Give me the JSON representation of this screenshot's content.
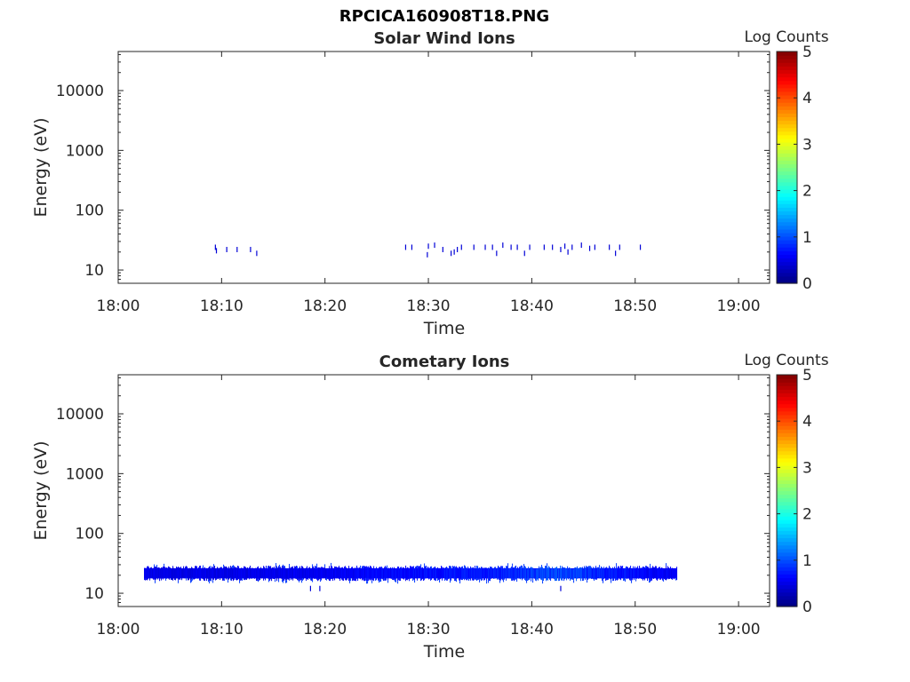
{
  "figure": {
    "title": "RPCICA160908T18.PNG"
  },
  "colors": {
    "axis": "#262626",
    "colormap": "jet"
  },
  "chart_data": [
    {
      "type": "heatmap",
      "title": "Solar Wind Ions",
      "xlabel": "Time",
      "ylabel": "Energy (eV)",
      "xlim": [
        "18:00",
        "19:03"
      ],
      "x_ticks": [
        "18:00",
        "18:10",
        "18:20",
        "18:30",
        "18:40",
        "18:50",
        "19:00"
      ],
      "y_scale": "log",
      "ylim": [
        6,
        45000
      ],
      "y_ticks": [
        "10",
        "100",
        "1000",
        "10000"
      ],
      "colorbar": {
        "label": "Log Counts",
        "range": [
          0,
          5
        ],
        "ticks": [
          "0",
          "1",
          "2",
          "3",
          "4",
          "5"
        ]
      },
      "events": [
        {
          "t": "18:09.4",
          "e": 24,
          "log_counts": 0.3
        },
        {
          "t": "18:09.5",
          "e": 21,
          "log_counts": 0.3
        },
        {
          "t": "18:10.5",
          "e": 22,
          "log_counts": 0.3
        },
        {
          "t": "18:11.5",
          "e": 22,
          "log_counts": 0.3
        },
        {
          "t": "18:12.8",
          "e": 22,
          "log_counts": 0.3
        },
        {
          "t": "18:13.4",
          "e": 19,
          "log_counts": 0.3
        },
        {
          "t": "18:27.8",
          "e": 24,
          "log_counts": 0.3
        },
        {
          "t": "18:28.4",
          "e": 24,
          "log_counts": 0.3
        },
        {
          "t": "18:29.9",
          "e": 18,
          "log_counts": 0.3
        },
        {
          "t": "18:30.0",
          "e": 25,
          "log_counts": 0.3
        },
        {
          "t": "18:30.6",
          "e": 26,
          "log_counts": 0.3
        },
        {
          "t": "18:31.4",
          "e": 22,
          "log_counts": 0.3
        },
        {
          "t": "18:32.2",
          "e": 19,
          "log_counts": 0.3
        },
        {
          "t": "18:32.5",
          "e": 20,
          "log_counts": 0.3
        },
        {
          "t": "18:32.8",
          "e": 22,
          "log_counts": 0.3
        },
        {
          "t": "18:33.2",
          "e": 24,
          "log_counts": 0.3
        },
        {
          "t": "18:34.4",
          "e": 24,
          "log_counts": 0.3
        },
        {
          "t": "18:35.5",
          "e": 24,
          "log_counts": 0.3
        },
        {
          "t": "18:36.2",
          "e": 24,
          "log_counts": 0.3
        },
        {
          "t": "18:36.6",
          "e": 19,
          "log_counts": 0.3
        },
        {
          "t": "18:37.2",
          "e": 26,
          "log_counts": 0.3
        },
        {
          "t": "18:38.0",
          "e": 24,
          "log_counts": 0.3
        },
        {
          "t": "18:38.6",
          "e": 24,
          "log_counts": 0.3
        },
        {
          "t": "18:39.3",
          "e": 19,
          "log_counts": 0.3
        },
        {
          "t": "18:39.8",
          "e": 24,
          "log_counts": 0.3
        },
        {
          "t": "18:41.2",
          "e": 24,
          "log_counts": 0.3
        },
        {
          "t": "18:42.0",
          "e": 24,
          "log_counts": 0.3
        },
        {
          "t": "18:42.8",
          "e": 22,
          "log_counts": 0.3
        },
        {
          "t": "18:43.2",
          "e": 25,
          "log_counts": 0.3
        },
        {
          "t": "18:43.5",
          "e": 20,
          "log_counts": 0.3
        },
        {
          "t": "18:43.9",
          "e": 24,
          "log_counts": 0.3
        },
        {
          "t": "18:44.8",
          "e": 26,
          "log_counts": 0.3
        },
        {
          "t": "18:45.6",
          "e": 23,
          "log_counts": 0.3
        },
        {
          "t": "18:46.1",
          "e": 24,
          "log_counts": 0.3
        },
        {
          "t": "18:47.5",
          "e": 24,
          "log_counts": 0.3
        },
        {
          "t": "18:48.1",
          "e": 19,
          "log_counts": 0.3
        },
        {
          "t": "18:48.5",
          "e": 24,
          "log_counts": 0.3
        },
        {
          "t": "18:50.5",
          "e": 24,
          "log_counts": 0.3
        }
      ]
    },
    {
      "type": "heatmap",
      "title": "Cometary Ions",
      "xlabel": "Time",
      "ylabel": "Energy (eV)",
      "xlim": [
        "18:00",
        "19:03"
      ],
      "x_ticks": [
        "18:00",
        "18:10",
        "18:20",
        "18:30",
        "18:40",
        "18:50",
        "19:00"
      ],
      "y_scale": "log",
      "ylim": [
        6,
        45000
      ],
      "y_ticks": [
        "10",
        "100",
        "1000",
        "10000"
      ],
      "colorbar": {
        "label": "Log Counts",
        "range": [
          0,
          5
        ],
        "ticks": [
          "0",
          "1",
          "2",
          "3",
          "4",
          "5"
        ]
      },
      "band": {
        "t_start": "18:02.5",
        "t_end": "18:54",
        "e_low": 16,
        "e_high": 29
      },
      "band_profile": [
        {
          "t": "18:02.5",
          "log_counts": 0.5
        },
        {
          "t": "18:10",
          "log_counts": 0.5
        },
        {
          "t": "18:20",
          "log_counts": 0.55
        },
        {
          "t": "18:28",
          "log_counts": 0.65
        },
        {
          "t": "18:32",
          "log_counts": 0.7
        },
        {
          "t": "18:38",
          "log_counts": 0.8
        },
        {
          "t": "18:41",
          "log_counts": 0.95
        },
        {
          "t": "18:44",
          "log_counts": 0.95
        },
        {
          "t": "18:47",
          "log_counts": 0.75
        },
        {
          "t": "18:50",
          "log_counts": 0.65
        },
        {
          "t": "18:54",
          "log_counts": 0.6
        }
      ],
      "outliers": [
        {
          "t": "18:18.6",
          "e": 12,
          "log_counts": 0.3
        },
        {
          "t": "18:19.5",
          "e": 12,
          "log_counts": 0.3
        },
        {
          "t": "18:42.8",
          "e": 12,
          "log_counts": 0.3
        }
      ]
    }
  ]
}
